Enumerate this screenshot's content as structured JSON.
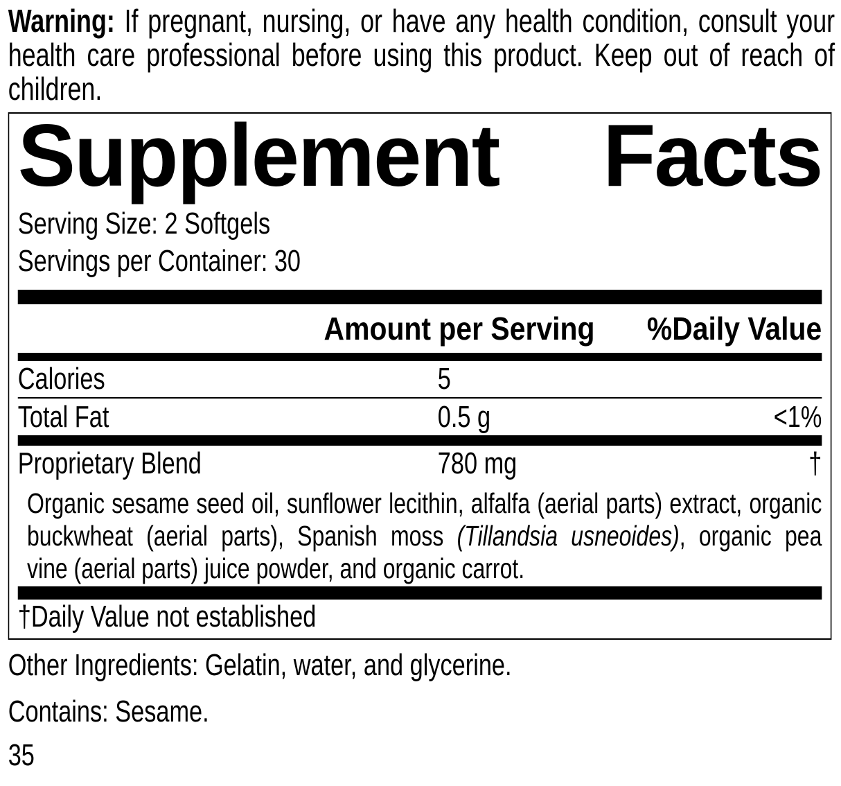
{
  "warning": {
    "label": "Warning:",
    "text": " If pregnant, nursing, or have any health condition, consult your health care professional before using this product. Keep out of reach of children."
  },
  "supplement_facts": {
    "title": "Supplement Facts",
    "serving_size": "Serving Size: 2 Softgels",
    "servings_per_container": "Servings per Container: 30",
    "header": {
      "amount": "Amount per Serving",
      "daily_value": "%Daily Value"
    },
    "rows": [
      {
        "name": "Calories",
        "amount": "5",
        "daily_value": ""
      },
      {
        "name": "Total Fat",
        "amount": "0.5 g",
        "daily_value": "<1%"
      },
      {
        "name": "Proprietary Blend",
        "amount": "780 mg",
        "daily_value": "†"
      }
    ],
    "blend_lines": [
      {
        "pre": "Organic sesame seed oil, sunflower lecithin, alfalfa (aerial parts) extract, organic",
        "italic": "",
        "post": ""
      },
      {
        "pre": "buckwheat (aerial parts), Spanish moss ",
        "italic": "(Tillandsia usneoides)",
        "post": ", organic pea"
      },
      {
        "pre": "vine (aerial parts) juice powder, and organic carrot.",
        "italic": "",
        "post": ""
      }
    ],
    "footnote": "†Daily Value not established"
  },
  "other_ingredients": "Other Ingredients: Gelatin, water, and glycerine.",
  "contains": "Contains: Sesame.",
  "page_number": "35",
  "colors": {
    "ink": "#000000",
    "background": "#ffffff"
  }
}
